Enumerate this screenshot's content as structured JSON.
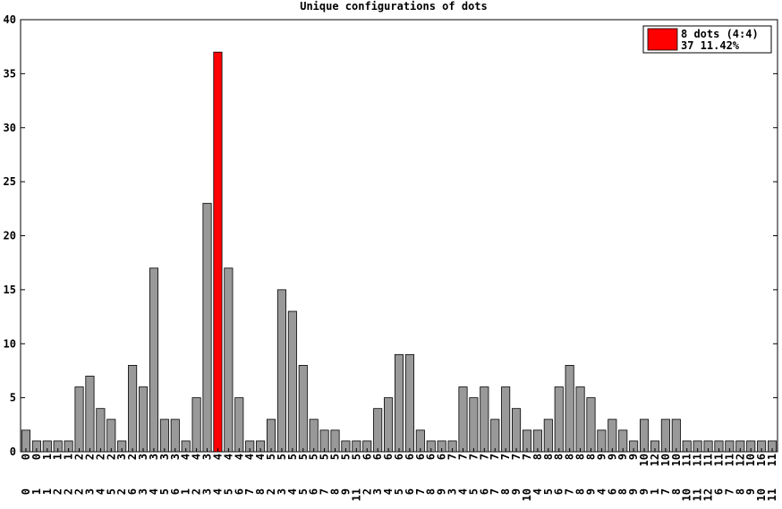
{
  "chart_data": {
    "type": "bar",
    "title": "Unique configurations of dots",
    "xlabel": "",
    "ylabel": "",
    "ylim": [
      0,
      40
    ],
    "yticks": [
      0,
      5,
      10,
      15,
      20,
      25,
      30,
      35,
      40
    ],
    "grid": false,
    "legend_position": "top-right",
    "legend": {
      "label": "8 dots (4:4)",
      "value_line": "37 11.42%",
      "color": "#ff0000"
    },
    "bar_color": "#999999",
    "highlight_color": "#ff0000",
    "highlight_index": 18,
    "categories": [
      [
        "0",
        "0"
      ],
      [
        "0",
        "1"
      ],
      [
        "1",
        "1"
      ],
      [
        "1",
        "2"
      ],
      [
        "1",
        "2"
      ],
      [
        "2",
        "2"
      ],
      [
        "2",
        "3"
      ],
      [
        "2",
        "4"
      ],
      [
        "2",
        "5"
      ],
      [
        "3",
        "2"
      ],
      [
        "2",
        "6"
      ],
      [
        "3",
        "3"
      ],
      [
        "3",
        "4"
      ],
      [
        "3",
        "5"
      ],
      [
        "3",
        "6"
      ],
      [
        "4",
        "1"
      ],
      [
        "4",
        "2"
      ],
      [
        "3",
        "3"
      ],
      [
        "4",
        "4"
      ],
      [
        "4",
        "5"
      ],
      [
        "4",
        "6"
      ],
      [
        "4",
        "7"
      ],
      [
        "4",
        "8"
      ],
      [
        "5",
        "2"
      ],
      [
        "5",
        "3"
      ],
      [
        "5",
        "4"
      ],
      [
        "5",
        "5"
      ],
      [
        "5",
        "6"
      ],
      [
        "5",
        "7"
      ],
      [
        "5",
        "8"
      ],
      [
        "5",
        "9"
      ],
      [
        "5",
        "11"
      ],
      [
        "6",
        "2"
      ],
      [
        "6",
        "3"
      ],
      [
        "6",
        "4"
      ],
      [
        "6",
        "5"
      ],
      [
        "6",
        "6"
      ],
      [
        "6",
        "7"
      ],
      [
        "6",
        "8"
      ],
      [
        "6",
        "9"
      ],
      [
        "7",
        "3"
      ],
      [
        "7",
        "4"
      ],
      [
        "7",
        "5"
      ],
      [
        "7",
        "6"
      ],
      [
        "7",
        "7"
      ],
      [
        "7",
        "8"
      ],
      [
        "7",
        "9"
      ],
      [
        "7",
        "10"
      ],
      [
        "8",
        "4"
      ],
      [
        "8",
        "5"
      ],
      [
        "8",
        "6"
      ],
      [
        "8",
        "7"
      ],
      [
        "8",
        "8"
      ],
      [
        "8",
        "9"
      ],
      [
        "9",
        "4"
      ],
      [
        "9",
        "6"
      ],
      [
        "9",
        "8"
      ],
      [
        "9",
        "9"
      ],
      [
        "10",
        "9"
      ],
      [
        "12",
        "1"
      ],
      [
        "10",
        "7"
      ],
      [
        "10",
        "8"
      ],
      [
        "11",
        "10"
      ],
      [
        "11",
        "11"
      ],
      [
        "11",
        "12"
      ],
      [
        "11",
        "6"
      ],
      [
        "11",
        "7"
      ],
      [
        "12",
        "8"
      ],
      [
        "10",
        "9"
      ],
      [
        "16",
        "10"
      ],
      [
        "11",
        "11"
      ]
    ],
    "values": [
      2,
      1,
      1,
      1,
      1,
      6,
      7,
      4,
      3,
      1,
      8,
      6,
      17,
      3,
      3,
      1,
      5,
      23,
      37,
      17,
      5,
      1,
      1,
      3,
      15,
      13,
      8,
      3,
      2,
      2,
      1,
      1,
      1,
      4,
      5,
      9,
      9,
      2,
      1,
      1,
      1,
      6,
      5,
      6,
      3,
      6,
      4,
      2,
      2,
      3,
      6,
      8,
      6,
      5,
      2,
      3,
      2,
      1,
      3,
      1,
      3,
      3,
      1,
      1,
      1,
      1,
      1,
      1,
      1,
      1,
      1
    ]
  }
}
